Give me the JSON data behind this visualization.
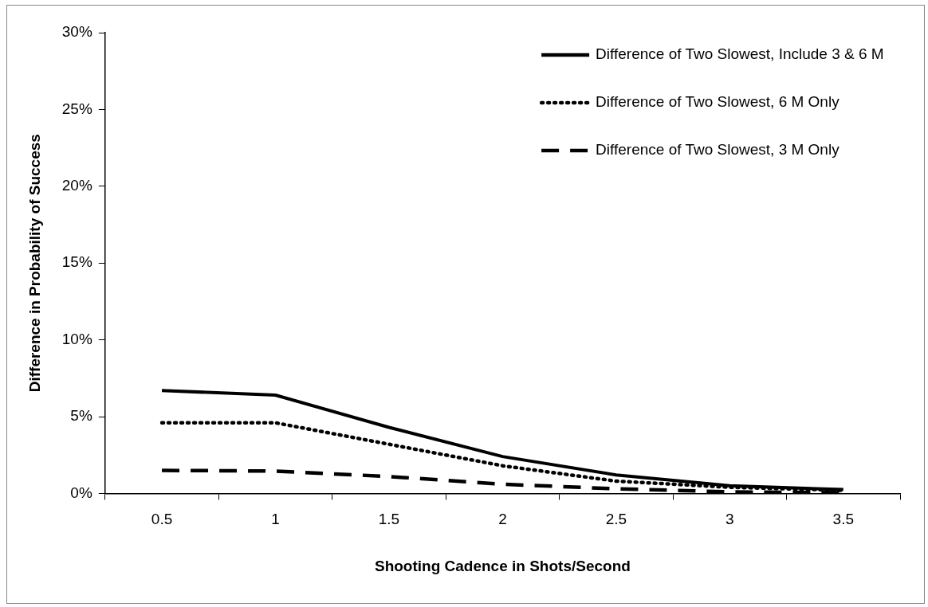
{
  "chart_data": {
    "type": "line",
    "xlabel": "Shooting Cadence in Shots/Second",
    "ylabel": "Difference in Probability of Success",
    "categories": [
      "0.5",
      "1",
      "1.5",
      "2",
      "2.5",
      "3",
      "3.5"
    ],
    "ylim": [
      0,
      30
    ],
    "yticks": [
      {
        "value": 0,
        "label": "0%"
      },
      {
        "value": 5,
        "label": "5%"
      },
      {
        "value": 10,
        "label": "10%"
      },
      {
        "value": 15,
        "label": "15%"
      },
      {
        "value": 20,
        "label": "20%"
      },
      {
        "value": 25,
        "label": "25%"
      },
      {
        "value": 30,
        "label": "30%"
      }
    ],
    "grid": false,
    "legend": "top right",
    "marker": "none",
    "series": [
      {
        "name": "Difference of Two Slowest, Include 3 & 6 M",
        "color": "#000000",
        "line_style": "solid",
        "values": [
          6.7,
          6.4,
          4.3,
          2.4,
          1.2,
          0.5,
          0.25
        ]
      },
      {
        "name": "Difference of Two Slowest, 6 M Only",
        "color": "#000000",
        "line_style": "dotted",
        "values": [
          4.6,
          4.6,
          3.2,
          1.8,
          0.8,
          0.4,
          0.2
        ]
      },
      {
        "name": "Difference of Two Slowest, 3 M Only",
        "color": "#000000",
        "line_style": "dashed",
        "values": [
          1.5,
          1.45,
          1.1,
          0.6,
          0.3,
          0.1,
          0.05
        ]
      }
    ]
  }
}
